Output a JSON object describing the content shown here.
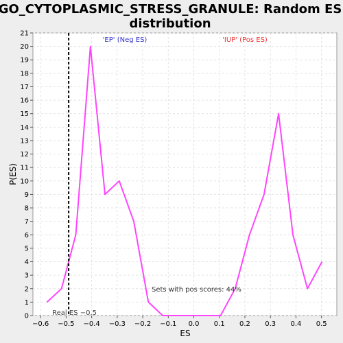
{
  "chart_data": {
    "type": "line",
    "title_line1": "GO_CYTOPLASMIC_STRESS_GRANULE: Random ES",
    "title_line2": "distribution",
    "xlabel": "ES",
    "ylabel": "P(ES)",
    "xlim": [
      -0.63,
      0.56
    ],
    "ylim": [
      0,
      21
    ],
    "x_ticks": [
      -0.6,
      -0.5,
      -0.4,
      -0.3,
      -0.2,
      -0.1,
      0.0,
      0.1,
      0.2,
      0.3,
      0.4,
      0.5
    ],
    "x_tick_labels": [
      "−0.6",
      "−0.5",
      "−0.4",
      "−0.3",
      "−0.2",
      "−0.1",
      "0.0",
      "0.1",
      "0.2",
      "0.3",
      "0.4",
      "0.5"
    ],
    "y_ticks": [
      0,
      1,
      2,
      3,
      4,
      5,
      6,
      7,
      8,
      9,
      10,
      11,
      12,
      13,
      14,
      15,
      16,
      17,
      18,
      19,
      20,
      21
    ],
    "grid": true,
    "series": [
      {
        "color": "#ff44ff",
        "x": [
          -0.575,
          -0.518,
          -0.462,
          -0.405,
          -0.348,
          -0.292,
          -0.235,
          -0.178,
          -0.122,
          -0.065,
          -0.008,
          0.048,
          0.105,
          0.162,
          0.218,
          0.275,
          0.332,
          0.388,
          0.445,
          0.502
        ],
        "y": [
          1,
          2,
          6,
          20,
          9,
          10,
          7,
          1,
          0,
          0,
          0,
          0,
          0,
          2,
          6,
          9,
          15,
          6,
          2,
          4
        ]
      }
    ],
    "real_es": {
      "value": -0.49,
      "label": "Real ES −0.5",
      "color": "#000000"
    },
    "annotations": {
      "neg_label": "'EP' (Neg ES)",
      "neg_color": "#3333cc",
      "pos_label": "'IUP' (Pos ES)",
      "pos_color": "#ee3333",
      "pos_scores": "Sets with pos scores: 44%"
    }
  }
}
